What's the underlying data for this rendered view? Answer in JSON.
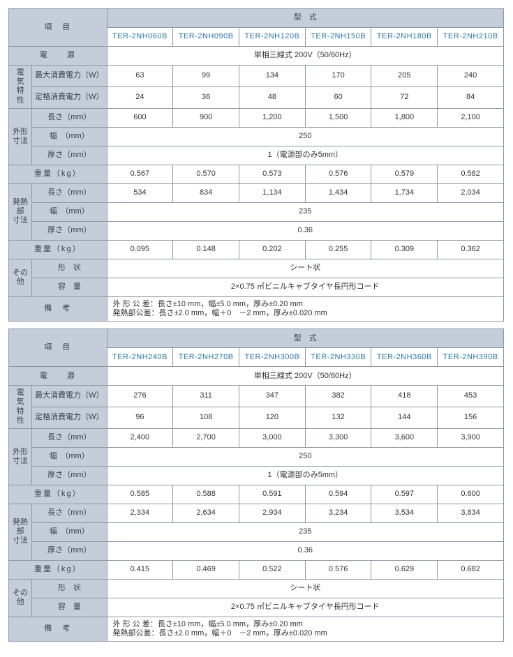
{
  "colors": {
    "border": "#8c97a6",
    "header_bg": "#c4cdd9",
    "header_text": "#3a3f49",
    "model_text": "#2874a6",
    "body_bg": "#ffffff"
  },
  "labels": {
    "item": "項　目",
    "model": "型　式",
    "power_source": "電　　源",
    "elec_group": "電気特性",
    "max_power": "最大消費電力（W）",
    "rated_power": "定格消費電力（W）",
    "outer_group": "外形寸法",
    "heat_group": "発熱部寸法",
    "length": "長さ（mm）",
    "width": "幅　（mm）",
    "thickness": "厚さ（mm）",
    "weight": "重量（kg）",
    "other_group": "その他",
    "shape": "形　状",
    "capacity": "容　量",
    "remarks": "備　考"
  },
  "common": {
    "power_source_val": "単相三線式 200V（50/60Hz）",
    "outer_width": "250",
    "outer_thickness": "1（電源部のみ5mm）",
    "heat_width": "235",
    "heat_thickness": "0.36",
    "shape_val": "シート状",
    "capacity_val": "2×0.75 ㎡ビニルキャブタイヤ長円形コード",
    "remarks_line1": "外 形 公 差：長さ±10 mm，幅±5.0 mm，厚み±0.20 mm",
    "remarks_line2": "発熱部公差：長さ±2.0 mm，幅＋0　－2 mm，厚み±0.020 mm"
  },
  "tables": [
    {
      "models": [
        "TER-2NH060B",
        "TER-2NH090B",
        "TER-2NH120B",
        "TER-2NH150B",
        "TER-2NH180B",
        "TER-2NH210B"
      ],
      "max_power": [
        "63",
        "99",
        "134",
        "170",
        "205",
        "240"
      ],
      "rated_power": [
        "24",
        "36",
        "48",
        "60",
        "72",
        "84"
      ],
      "outer_length": [
        "600",
        "900",
        "1,200",
        "1,500",
        "1,800",
        "2,100"
      ],
      "outer_weight": [
        "0.567",
        "0.570",
        "0.573",
        "0.576",
        "0.579",
        "0.582"
      ],
      "heat_length": [
        "534",
        "834",
        "1,134",
        "1,434",
        "1,734",
        "2,034"
      ],
      "heat_weight": [
        "0.095",
        "0.148",
        "0.202",
        "0.255",
        "0.309",
        "0.362"
      ]
    },
    {
      "models": [
        "TER-2NH240B",
        "TER-2NH270B",
        "TER-2NH300B",
        "TER-2NH330B",
        "TER-2NH360B",
        "TER-2NH390B"
      ],
      "max_power": [
        "276",
        "311",
        "347",
        "382",
        "418",
        "453"
      ],
      "rated_power": [
        "96",
        "108",
        "120",
        "132",
        "144",
        "156"
      ],
      "outer_length": [
        "2,400",
        "2,700",
        "3,000",
        "3,300",
        "3,600",
        "3,900"
      ],
      "outer_weight": [
        "0.585",
        "0.588",
        "0.591",
        "0.594",
        "0.597",
        "0.600"
      ],
      "heat_length": [
        "2,334",
        "2,634",
        "2,934",
        "3,234",
        "3,534",
        "3,834"
      ],
      "heat_weight": [
        "0.415",
        "0.469",
        "0.522",
        "0.576",
        "0.629",
        "0.682"
      ]
    }
  ],
  "col_widths": {
    "label1": 34,
    "label2": 92,
    "data": 97
  }
}
